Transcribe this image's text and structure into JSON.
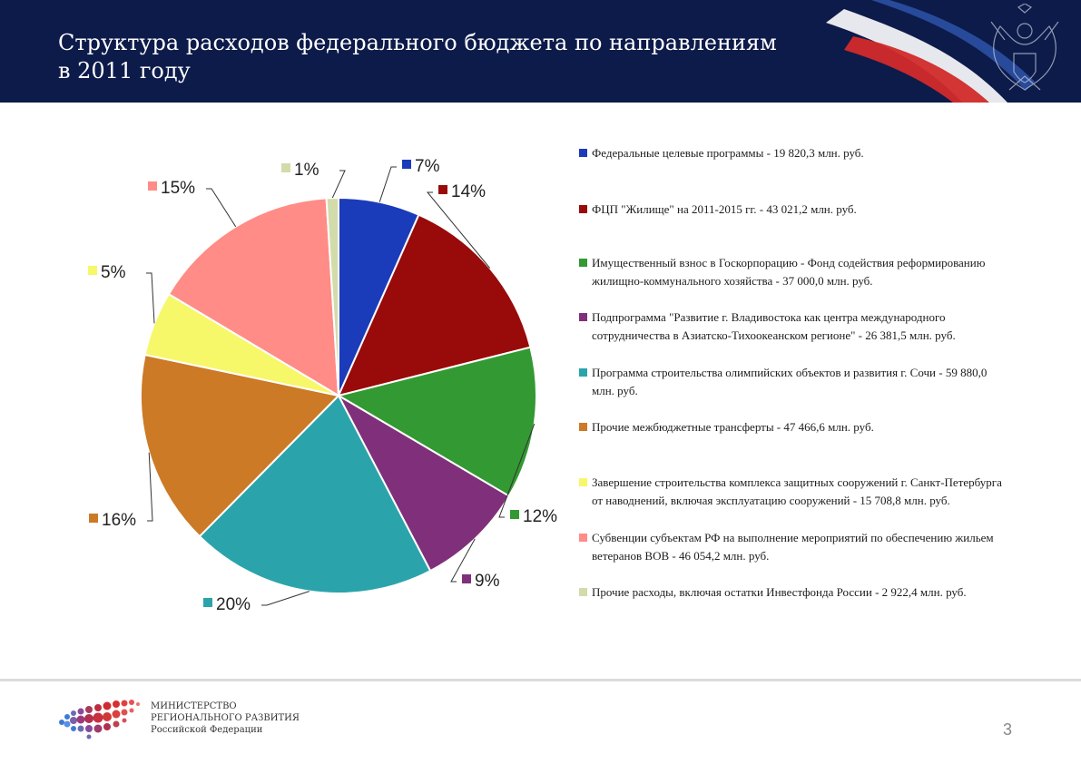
{
  "header": {
    "title_line1": "Структура расходов федерального бюджета по направлениям",
    "title_line2": "в 2011 году"
  },
  "colors": {
    "header_bg": "#0d1b4a",
    "slices": [
      "#1a3cba",
      "#990a0a",
      "#339933",
      "#80307a",
      "#2aa4aa",
      "#cc7a26",
      "#f7f76a",
      "#ff8c87",
      "#d2dcaa"
    ]
  },
  "chart_data": {
    "type": "pie",
    "title": "Структура расходов федерального бюджета по направлениям в 2011 году",
    "units": "млн. руб.",
    "labels": [
      "7%",
      "14%",
      "12%",
      "9%",
      "20%",
      "16%",
      "5%",
      "15%",
      "1%"
    ],
    "values": [
      19820.3,
      43021.2,
      37000.0,
      26381.5,
      59880.0,
      47466.6,
      15708.8,
      46054.2,
      2922.4
    ],
    "percents": [
      7,
      14,
      12,
      9,
      20,
      16,
      5,
      15,
      1
    ],
    "legend": [
      "Федеральные целевые программы - 19 820,3 млн. руб.",
      "ФЦП \"Жилище\" на 2011-2015 гг. - 43 021,2  млн. руб.",
      "Имущественный взнос в Госкорпорацию - Фонд содействия реформированию жилищно-коммунального хозяйства - 37 000,0 млн. руб.",
      "Подпрограмма \"Развитие г. Владивостока как центра международного сотрудничества в Азиатско-Тихоокеанском регионе\" - 26 381,5 млн. руб.",
      "Программа строительства олимпийских объектов и развития г. Сочи  - 59 880,0 млн. руб.",
      "Прочие межбюджетные трансферты - 47 466,6  млн. руб.",
      "Завершение строительства комплекса защитных сооружений г. Санкт-Петербурга от наводнений, включая эксплуатацию сооружений - 15 708,8  млн. руб.",
      "Субвенции субъектам РФ на выполнение мероприятий по обеспечению жильем ветеранов ВОВ - 46 054,2 млн. руб.",
      "Прочие расходы, включая остатки Инвестфонда России - 2 922,4 млн. руб."
    ],
    "legend_position": "right"
  },
  "footer": {
    "ministry_line1": "МИНИСТЕРСТВО",
    "ministry_line2": "РЕГИОНАЛЬНОГО РАЗВИТИЯ",
    "ministry_line3": "Российской Федерации",
    "page_number": "3"
  }
}
